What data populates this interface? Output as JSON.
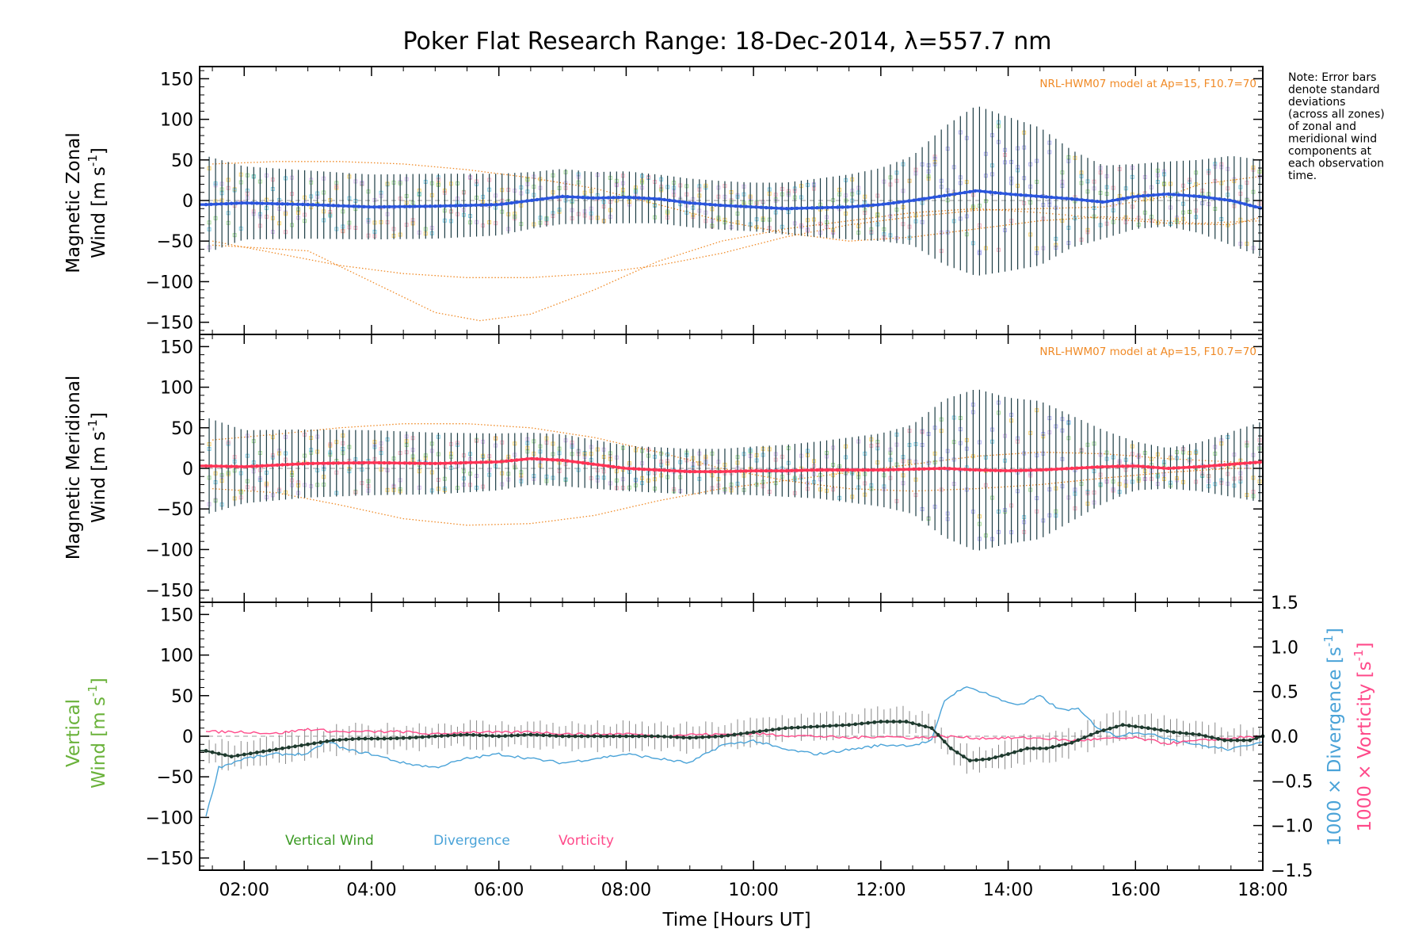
{
  "title": "Poker Flat Research Range: 18-Dec-2014, λ=557.7 nm",
  "note": [
    "Note: Error bars",
    "denote standard",
    "deviations",
    "(across all zones)",
    "of zonal and",
    "meridional wind",
    "components at",
    "each observation",
    "time."
  ],
  "model_label": "NRL-HWM07 model at Ap=15, F10.7=70",
  "x_axis": {
    "label": "Time [Hours UT]",
    "ticks": [
      "02:00",
      "04:00",
      "06:00",
      "08:00",
      "10:00",
      "12:00",
      "14:00",
      "16:00",
      "18:00"
    ],
    "range_hours": [
      1.3,
      18.0
    ]
  },
  "panels": {
    "zonal": {
      "ylabel_1": "Magnetic Zonal",
      "ylabel_2": "Wind [m s",
      "ylabel_sup": "-1",
      "ylabel_close": "]"
    },
    "meridional": {
      "ylabel_1": "Magnetic Meridional",
      "ylabel_2": "Wind [m s",
      "ylabel_sup": "-1",
      "ylabel_close": "]"
    },
    "vertical": {
      "ylabel_1": "Vertical",
      "ylabel_2a": "Wind ",
      "ylabel_2b": "[m s",
      "ylabel_sup": "-1",
      "ylabel_close": "]",
      "right_label_div_a": "1000 × Divergence ",
      "right_label_div_b": "[s",
      "right_label_vort_a": "1000 × Vorticity ",
      "right_label_vort_b": "[s",
      "right_sup": "-1",
      "right_close": "]"
    }
  },
  "legend": {
    "vertical": "Vertical Wind",
    "divergence": "Divergence",
    "vorticity": "Vorticity"
  },
  "colors": {
    "zonal_mean": "#2a55dd",
    "zonal_mean_late": "#3aa7e0",
    "meridional_mean": "#ff3355",
    "vertical_mean": "#1e3a2e",
    "vertical_legend": "#3a9a22",
    "divergence": "#4aa3d8",
    "vorticity": "#ff4a8a",
    "model": "#f08a26",
    "outlier": "#9a9af0",
    "errorbar": "#1c3c44"
  },
  "chart_data": [
    {
      "type": "line",
      "panel": "zonal",
      "y_ticks": [
        "150",
        "100",
        "50",
        "0",
        "−50",
        "−100",
        "−150"
      ],
      "ylim": [
        -165,
        165
      ],
      "series": [
        {
          "name": "",
          "x": [
            1.4,
            2.0,
            3.0,
            4.0,
            5.0,
            6.0,
            6.5,
            7.0,
            7.5,
            8.0,
            8.5,
            9.0,
            9.5,
            10.0,
            10.5,
            11.0,
            11.5,
            12.0,
            12.5,
            13.0,
            13.5,
            14.0,
            14.5,
            15.0,
            15.5,
            16.0,
            16.5,
            17.0,
            17.5,
            18.0
          ],
          "y": [
            -5,
            -3,
            -5,
            -8,
            -7,
            -5,
            0,
            5,
            3,
            4,
            2,
            -3,
            -6,
            -8,
            -10,
            -9,
            -8,
            -5,
            0,
            6,
            12,
            8,
            5,
            2,
            -2,
            5,
            8,
            5,
            0,
            -10
          ],
          "err": [
            60,
            45,
            42,
            40,
            40,
            38,
            35,
            34,
            32,
            32,
            30,
            30,
            30,
            30,
            32,
            36,
            40,
            45,
            55,
            85,
            105,
            95,
            85,
            60,
            45,
            40,
            40,
            45,
            55,
            60
          ]
        }
      ],
      "model_curves": [
        {
          "x": [
            1.5,
            3.0,
            4.0,
            5.0,
            5.7,
            6.5,
            7.5,
            8.5,
            9.5,
            10.5,
            11.5,
            12.5,
            13.5,
            14.5,
            15.5,
            16.5,
            17.5,
            18.0
          ],
          "y": [
            -55,
            -62,
            -100,
            -138,
            -148,
            -140,
            -110,
            -75,
            -50,
            -35,
            -25,
            -15,
            -10,
            -15,
            -22,
            -28,
            -30,
            -20
          ]
        },
        {
          "x": [
            1.5,
            2.5,
            3.5,
            4.5,
            5.5,
            6.5,
            7.5,
            8.5,
            9.5,
            10.5,
            11.5,
            12.5,
            13.5,
            14.5,
            15.5,
            16.5,
            17.0,
            18.0
          ],
          "y": [
            -50,
            -65,
            -80,
            -90,
            -95,
            -95,
            -90,
            -80,
            -65,
            -45,
            -30,
            -20,
            -12,
            -10,
            -8,
            5,
            20,
            30
          ]
        },
        {
          "x": [
            1.5,
            2.5,
            3.5,
            4.5,
            5.5,
            6.5,
            7.5,
            8.5,
            9.5,
            10.5,
            11.5,
            12.5,
            13.5,
            14.5,
            15.5,
            16.5,
            17.0,
            18.0
          ],
          "y": [
            45,
            48,
            48,
            45,
            38,
            28,
            15,
            -5,
            -25,
            -40,
            -50,
            -45,
            -35,
            -25,
            -20,
            -25,
            -28,
            -25
          ]
        }
      ]
    },
    {
      "type": "line",
      "panel": "meridional",
      "y_ticks": [
        "150",
        "100",
        "50",
        "0",
        "−50",
        "−100",
        "−150"
      ],
      "ylim": [
        -165,
        165
      ],
      "series": [
        {
          "name": "",
          "x": [
            1.4,
            2.0,
            3.0,
            4.0,
            5.0,
            6.0,
            6.5,
            7.0,
            7.5,
            8.0,
            8.5,
            9.0,
            9.5,
            10.0,
            10.5,
            11.0,
            11.5,
            12.0,
            12.5,
            13.0,
            13.5,
            14.0,
            14.5,
            15.0,
            15.5,
            16.0,
            16.5,
            17.0,
            17.5,
            18.0
          ],
          "y": [
            3,
            2,
            6,
            7,
            6,
            8,
            12,
            10,
            5,
            0,
            -2,
            -4,
            -4,
            -3,
            -3,
            -2,
            -2,
            -2,
            -1,
            0,
            -2,
            -3,
            -2,
            0,
            2,
            3,
            0,
            2,
            5,
            8
          ],
          "err": [
            60,
            45,
            42,
            40,
            38,
            35,
            32,
            32,
            30,
            28,
            28,
            28,
            28,
            30,
            32,
            35,
            40,
            45,
            55,
            85,
            100,
            90,
            85,
            65,
            45,
            30,
            25,
            30,
            40,
            50
          ]
        }
      ],
      "model_curves": [
        {
          "x": [
            1.5,
            2.5,
            3.5,
            4.5,
            5.5,
            6.5,
            7.5,
            8.5,
            9.5,
            10.5,
            11.5,
            12.5,
            13.5,
            14.5,
            15.5,
            16.5,
            17.5,
            18.0
          ],
          "y": [
            -25,
            -30,
            -45,
            -62,
            -70,
            -68,
            -58,
            -40,
            -25,
            -15,
            -5,
            5,
            15,
            20,
            18,
            12,
            8,
            5
          ]
        },
        {
          "x": [
            1.5,
            2.5,
            3.5,
            4.5,
            5.5,
            6.5,
            7.5,
            8.5,
            9.5,
            10.5,
            11.5,
            12.5,
            13.5,
            14.5,
            15.5,
            16.5,
            17.5,
            18.0
          ],
          "y": [
            35,
            42,
            50,
            55,
            55,
            50,
            38,
            20,
            0,
            -15,
            -25,
            -28,
            -25,
            -20,
            -12,
            -5,
            0,
            0
          ]
        }
      ]
    },
    {
      "type": "line",
      "panel": "vertical",
      "y_ticks": [
        "150",
        "100",
        "50",
        "0",
        "−50",
        "−100",
        "−150"
      ],
      "y2_ticks": [
        "1.5",
        "1.0",
        "0.5",
        "0.0",
        "−0.5",
        "−1.0",
        "−1.5"
      ],
      "ylim": [
        -165,
        165
      ],
      "y2lim": [
        -1.5,
        1.5
      ],
      "series": [
        {
          "name": "Vertical Wind",
          "x": [
            1.4,
            1.8,
            2.2,
            2.6,
            3.0,
            3.4,
            3.8,
            4.2,
            4.6,
            5.0,
            5.5,
            6.0,
            6.5,
            7.0,
            7.5,
            8.0,
            8.5,
            9.0,
            9.5,
            10.0,
            10.5,
            11.0,
            11.5,
            12.0,
            12.4,
            12.8,
            13.1,
            13.4,
            13.7,
            14.0,
            14.3,
            14.6,
            15.0,
            15.4,
            15.8,
            16.2,
            16.6,
            17.0,
            17.4,
            17.8,
            18.0
          ],
          "y": [
            -18,
            -25,
            -20,
            -15,
            -10,
            -5,
            -3,
            -3,
            -2,
            0,
            2,
            0,
            2,
            0,
            0,
            0,
            0,
            -2,
            0,
            5,
            10,
            12,
            14,
            18,
            18,
            10,
            -15,
            -30,
            -28,
            -22,
            -15,
            -15,
            -8,
            5,
            14,
            10,
            5,
            2,
            -5,
            -5,
            0
          ],
          "err": [
            15,
            15,
            15,
            15,
            15,
            15,
            15,
            15,
            15,
            15,
            15,
            15,
            15,
            15,
            15,
            15,
            15,
            15,
            15,
            15,
            15,
            15,
            15,
            15,
            15,
            15,
            15,
            15,
            15,
            15,
            15,
            15,
            15,
            15,
            15,
            15,
            15,
            15,
            15,
            15,
            15
          ]
        },
        {
          "name": "Divergence",
          "x": [
            1.4,
            1.6,
            2.0,
            2.5,
            3.0,
            3.3,
            3.6,
            4.0,
            4.5,
            5.0,
            5.5,
            6.0,
            6.5,
            7.0,
            7.5,
            8.0,
            8.5,
            9.0,
            9.5,
            10.0,
            10.5,
            11.0,
            11.5,
            12.0,
            12.5,
            12.8,
            13.0,
            13.3,
            13.6,
            13.9,
            14.2,
            14.5,
            14.8,
            15.1,
            15.4,
            15.7,
            16.0,
            16.5,
            17.0,
            17.5,
            18.0
          ],
          "y": [
            -0.9,
            -0.35,
            -0.25,
            -0.2,
            -0.2,
            -0.05,
            -0.15,
            -0.2,
            -0.3,
            -0.35,
            -0.25,
            -0.2,
            -0.25,
            -0.3,
            -0.25,
            -0.2,
            -0.25,
            -0.3,
            -0.1,
            -0.05,
            -0.15,
            -0.2,
            -0.15,
            -0.1,
            -0.1,
            -0.05,
            0.4,
            0.55,
            0.5,
            0.4,
            0.35,
            0.45,
            0.3,
            0.3,
            0.1,
            0.0,
            0.05,
            -0.02,
            -0.1,
            -0.15,
            -0.05
          ]
        },
        {
          "name": "Vorticity",
          "x": [
            1.4,
            2.0,
            2.5,
            3.0,
            3.5,
            4.0,
            4.5,
            5.0,
            5.5,
            6.0,
            6.5,
            7.0,
            7.5,
            8.0,
            8.5,
            9.0,
            9.5,
            10.0,
            10.5,
            11.0,
            11.5,
            12.0,
            12.5,
            13.0,
            13.5,
            14.0,
            14.5,
            15.0,
            15.5,
            16.0,
            16.5,
            17.0,
            17.5,
            18.0
          ],
          "y": [
            0.05,
            0.05,
            0.03,
            0.08,
            0.05,
            0.05,
            0.05,
            0.02,
            0.05,
            0.04,
            0.05,
            0.03,
            0.02,
            0.03,
            0.0,
            0.02,
            0.02,
            0.03,
            0.01,
            0.0,
            -0.02,
            0.0,
            -0.02,
            0.0,
            -0.02,
            -0.02,
            -0.02,
            -0.05,
            -0.03,
            -0.02,
            -0.08,
            -0.05,
            -0.02,
            0.0
          ]
        }
      ]
    }
  ]
}
